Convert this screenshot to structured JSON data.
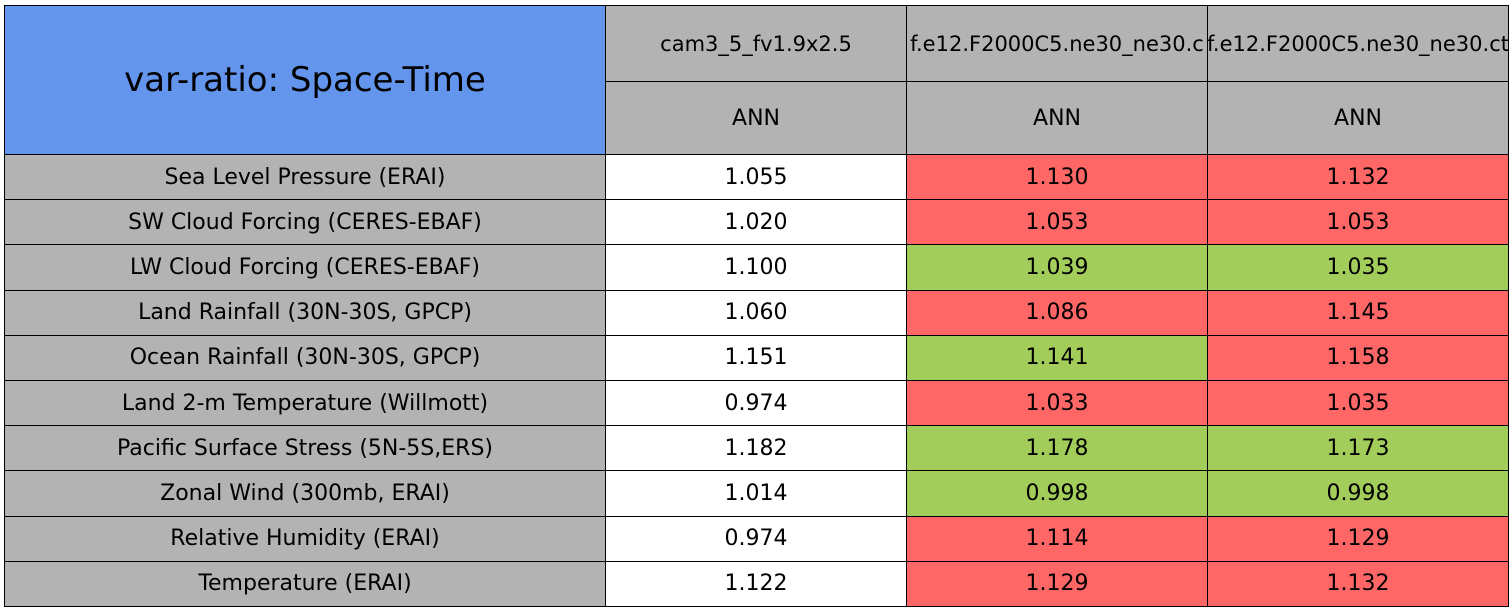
{
  "table": {
    "title": "var-ratio: Space-Time",
    "title_color": "#6495ed",
    "header_color": "#b3b3b3",
    "label_color": "#b3b3b3",
    "columns": [
      {
        "name": "cam3_5_fv1.9x2.5",
        "period": "ANN"
      },
      {
        "name": "f.e12.F2000C5.ne30_ne30.c",
        "period": "ANN"
      },
      {
        "name": "f.e12.F2000C5.ne30_ne30.ct",
        "period": "ANN"
      }
    ],
    "rows": [
      {
        "label": "Sea Level Pressure (ERAI)",
        "values": [
          "1.055",
          "1.130",
          "1.132"
        ],
        "colors": [
          "#ffffff",
          "#ff6666",
          "#ff6666"
        ]
      },
      {
        "label": "SW Cloud Forcing (CERES-EBAF)",
        "values": [
          "1.020",
          "1.053",
          "1.053"
        ],
        "colors": [
          "#ffffff",
          "#ff6666",
          "#ff6666"
        ]
      },
      {
        "label": "LW Cloud Forcing (CERES-EBAF)",
        "values": [
          "1.100",
          "1.039",
          "1.035"
        ],
        "colors": [
          "#ffffff",
          "#a2cd5a",
          "#a2cd5a"
        ]
      },
      {
        "label": "Land Rainfall (30N-30S, GPCP)",
        "values": [
          "1.060",
          "1.086",
          "1.145"
        ],
        "colors": [
          "#ffffff",
          "#ff6666",
          "#ff6666"
        ]
      },
      {
        "label": "Ocean Rainfall (30N-30S, GPCP)",
        "values": [
          "1.151",
          "1.141",
          "1.158"
        ],
        "colors": [
          "#ffffff",
          "#a2cd5a",
          "#ff6666"
        ]
      },
      {
        "label": "Land 2-m Temperature (Willmott)",
        "values": [
          "0.974",
          "1.033",
          "1.035"
        ],
        "colors": [
          "#ffffff",
          "#ff6666",
          "#ff6666"
        ]
      },
      {
        "label": "Pacific Surface Stress (5N-5S,ERS)",
        "values": [
          "1.182",
          "1.178",
          "1.173"
        ],
        "colors": [
          "#ffffff",
          "#a2cd5a",
          "#a2cd5a"
        ]
      },
      {
        "label": "Zonal Wind (300mb, ERAI)",
        "values": [
          "1.014",
          "0.998",
          "0.998"
        ],
        "colors": [
          "#ffffff",
          "#a2cd5a",
          "#a2cd5a"
        ]
      },
      {
        "label": "Relative Humidity (ERAI)",
        "values": [
          "0.974",
          "1.114",
          "1.129"
        ],
        "colors": [
          "#ffffff",
          "#ff6666",
          "#ff6666"
        ]
      },
      {
        "label": "Temperature (ERAI)",
        "values": [
          "1.122",
          "1.129",
          "1.132"
        ],
        "colors": [
          "#ffffff",
          "#ff6666",
          "#ff6666"
        ]
      }
    ]
  }
}
